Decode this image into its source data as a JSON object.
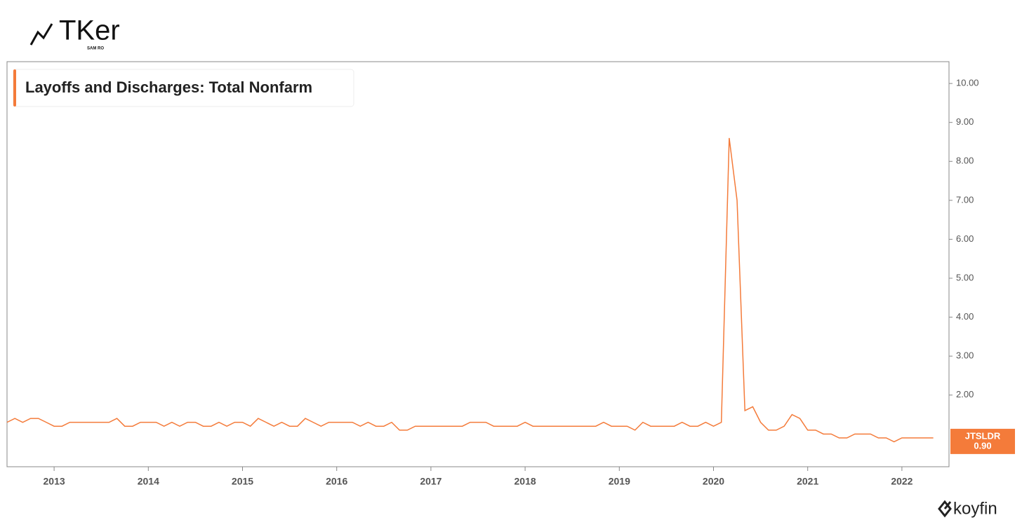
{
  "logo": {
    "name": "TKer",
    "byline": "SAM RO"
  },
  "brand": "koyfin",
  "chart_data": {
    "type": "line",
    "title": "Layoffs and Discharges: Total Nonfarm",
    "x": [
      "2012-07",
      "2012-08",
      "2012-09",
      "2012-10",
      "2012-11",
      "2012-12",
      "2013-01",
      "2013-02",
      "2013-03",
      "2013-04",
      "2013-05",
      "2013-06",
      "2013-07",
      "2013-08",
      "2013-09",
      "2013-10",
      "2013-11",
      "2013-12",
      "2014-01",
      "2014-02",
      "2014-03",
      "2014-04",
      "2014-05",
      "2014-06",
      "2014-07",
      "2014-08",
      "2014-09",
      "2014-10",
      "2014-11",
      "2014-12",
      "2015-01",
      "2015-02",
      "2015-03",
      "2015-04",
      "2015-05",
      "2015-06",
      "2015-07",
      "2015-08",
      "2015-09",
      "2015-10",
      "2015-11",
      "2015-12",
      "2016-01",
      "2016-02",
      "2016-03",
      "2016-04",
      "2016-05",
      "2016-06",
      "2016-07",
      "2016-08",
      "2016-09",
      "2016-10",
      "2016-11",
      "2016-12",
      "2017-01",
      "2017-02",
      "2017-03",
      "2017-04",
      "2017-05",
      "2017-06",
      "2017-07",
      "2017-08",
      "2017-09",
      "2017-10",
      "2017-11",
      "2017-12",
      "2018-01",
      "2018-02",
      "2018-03",
      "2018-04",
      "2018-05",
      "2018-06",
      "2018-07",
      "2018-08",
      "2018-09",
      "2018-10",
      "2018-11",
      "2018-12",
      "2019-01",
      "2019-02",
      "2019-03",
      "2019-04",
      "2019-05",
      "2019-06",
      "2019-07",
      "2019-08",
      "2019-09",
      "2019-10",
      "2019-11",
      "2019-12",
      "2020-01",
      "2020-02",
      "2020-03",
      "2020-04",
      "2020-05",
      "2020-06",
      "2020-07",
      "2020-08",
      "2020-09",
      "2020-10",
      "2020-11",
      "2020-12",
      "2021-01",
      "2021-02",
      "2021-03",
      "2021-04",
      "2021-05",
      "2021-06",
      "2021-07",
      "2021-08",
      "2021-09",
      "2021-10",
      "2021-11",
      "2021-12",
      "2022-01",
      "2022-02",
      "2022-03",
      "2022-04",
      "2022-05"
    ],
    "series": [
      {
        "name": "JTSLDR",
        "color": "#f47b3a",
        "values": [
          1.3,
          1.4,
          1.3,
          1.4,
          1.4,
          1.3,
          1.2,
          1.2,
          1.3,
          1.3,
          1.3,
          1.3,
          1.3,
          1.3,
          1.4,
          1.2,
          1.2,
          1.3,
          1.3,
          1.3,
          1.2,
          1.3,
          1.2,
          1.3,
          1.3,
          1.2,
          1.2,
          1.3,
          1.2,
          1.3,
          1.3,
          1.2,
          1.4,
          1.3,
          1.2,
          1.3,
          1.2,
          1.2,
          1.4,
          1.3,
          1.2,
          1.3,
          1.3,
          1.3,
          1.3,
          1.2,
          1.3,
          1.2,
          1.2,
          1.3,
          1.1,
          1.1,
          1.2,
          1.2,
          1.2,
          1.2,
          1.2,
          1.2,
          1.2,
          1.3,
          1.3,
          1.3,
          1.2,
          1.2,
          1.2,
          1.2,
          1.3,
          1.2,
          1.2,
          1.2,
          1.2,
          1.2,
          1.2,
          1.2,
          1.2,
          1.2,
          1.3,
          1.2,
          1.2,
          1.2,
          1.1,
          1.3,
          1.2,
          1.2,
          1.2,
          1.2,
          1.3,
          1.2,
          1.2,
          1.3,
          1.2,
          1.3,
          8.6,
          7.0,
          1.6,
          1.7,
          1.3,
          1.1,
          1.1,
          1.2,
          1.5,
          1.4,
          1.1,
          1.1,
          1.0,
          1.0,
          0.9,
          0.9,
          1.0,
          1.0,
          1.0,
          0.9,
          0.9,
          0.8,
          0.9,
          0.9,
          0.9,
          0.9,
          0.9
        ],
        "value_labels": [
          null,
          null,
          null,
          null,
          null,
          null,
          null,
          null,
          null,
          null,
          null,
          null,
          null,
          null,
          null,
          null,
          null,
          null,
          null,
          null,
          null,
          null,
          null,
          null,
          null,
          null,
          null,
          null,
          null,
          null,
          null,
          null,
          null,
          null,
          null,
          null,
          null,
          null,
          null,
          null,
          null,
          null,
          null,
          null,
          null,
          null,
          null,
          null,
          null,
          null,
          null,
          null,
          null,
          null,
          null,
          null,
          null,
          null,
          null,
          null,
          null,
          null,
          null,
          null,
          null,
          null,
          null,
          null,
          null,
          null,
          null,
          null,
          null,
          null,
          null,
          null,
          null,
          null,
          null,
          null,
          null,
          null,
          null,
          null,
          null,
          null,
          null,
          null,
          null,
          null,
          null,
          null,
          null,
          null,
          null,
          null,
          null,
          null,
          null,
          null,
          null,
          null,
          null,
          null,
          null,
          null,
          null,
          null,
          null,
          null,
          null,
          null,
          null,
          null,
          null,
          null,
          null,
          null,
          "0.90"
        ]
      }
    ],
    "xlim": [
      "2012-07",
      "2022-07"
    ],
    "xticks": [
      "2013",
      "2014",
      "2015",
      "2016",
      "2017",
      "2018",
      "2019",
      "2020",
      "2021",
      "2022"
    ],
    "ylim": [
      0.16,
      10.56
    ],
    "yticks": [
      {
        "value": 2,
        "label": "2.00"
      },
      {
        "value": 3,
        "label": "3.00"
      },
      {
        "value": 4,
        "label": "4.00"
      },
      {
        "value": 5,
        "label": "5.00"
      },
      {
        "value": 6,
        "label": "6.00"
      },
      {
        "value": 7,
        "label": "7.00"
      },
      {
        "value": 8,
        "label": "8.00"
      },
      {
        "value": 9,
        "label": "9.00"
      },
      {
        "value": 10,
        "label": "10.00"
      }
    ],
    "grid": false
  }
}
